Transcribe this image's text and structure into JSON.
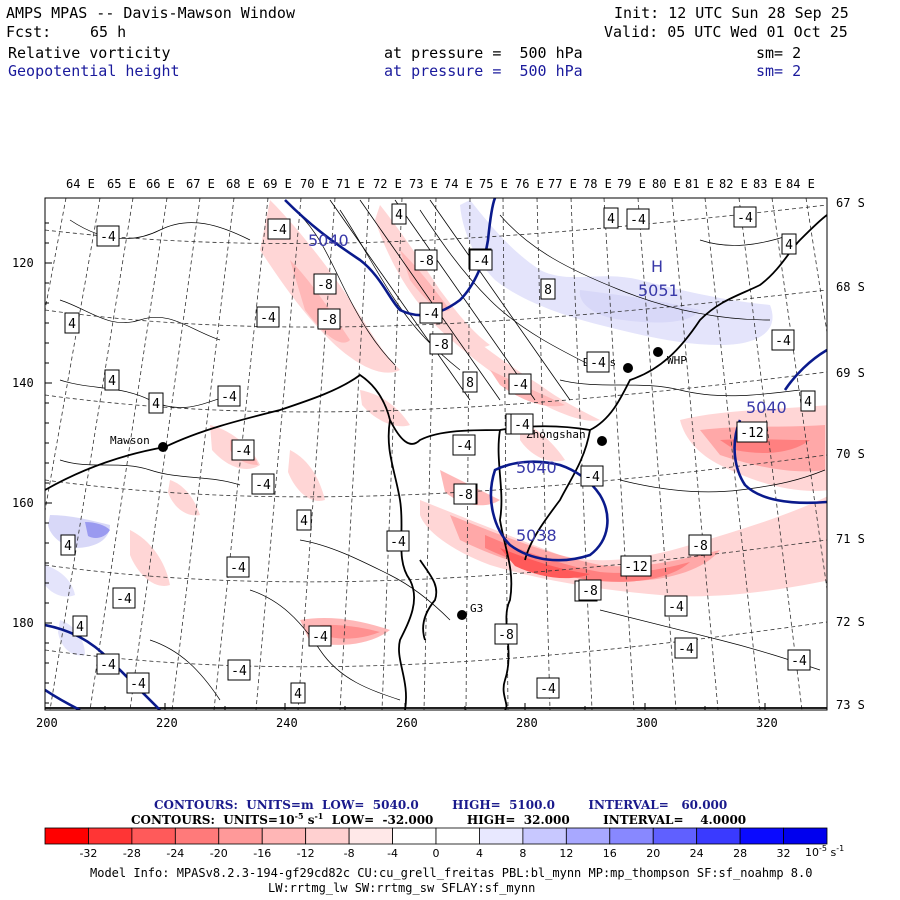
{
  "header": {
    "title": "AMPS MPAS -- Davis-Mawson Window",
    "init": "Init: 12 UTC Sun 28 Sep 25",
    "fcst_label": "Fcst:",
    "fcst_value": "65 h",
    "valid": "Valid: 05 UTC Wed 01 Oct 25",
    "field1_name": "Relative vorticity",
    "field1_level": "at pressure =  500 hPa",
    "field1_sm": "sm= 2",
    "field2_name": "Geopotential height",
    "field2_level": "at pressure =  500 hPa",
    "field2_sm": "sm= 2"
  },
  "colors": {
    "height_contour": "#0a1a8c",
    "coast": "#000000",
    "grid": "#333333"
  },
  "map": {
    "lon_labels": [
      "64 E",
      "65 E",
      "66 E",
      "67 E",
      "68 E",
      "69 E",
      "70 E",
      "71 E",
      "72 E",
      "73 E",
      "74 E",
      "75 E",
      "76 E",
      "77 E",
      "78 E",
      "79 E",
      "80 E",
      "81 E",
      "82 E",
      "83 E",
      "84 E"
    ],
    "lat_labels": [
      "67 S",
      "68 S",
      "69 S",
      "70 S",
      "71 S",
      "72 S",
      "73 S"
    ],
    "x_ticks": [
      "200",
      "220",
      "240",
      "260",
      "280",
      "300",
      "320"
    ],
    "y_ticks": [
      "120",
      "140",
      "160",
      "180"
    ],
    "stations": [
      {
        "name": "Mawson"
      },
      {
        "name": "Davis"
      },
      {
        "name": "WHP"
      },
      {
        "name": "Zhongshan"
      },
      {
        "name": "G3"
      }
    ],
    "height_labels": [
      "5040",
      "5051",
      "5040",
      "5040",
      "5038"
    ],
    "high_marker": "H",
    "vort_labels": [
      "-4",
      "4",
      "-4",
      "-8",
      "-8",
      "-8",
      "-4",
      "4",
      "-8",
      "-4",
      "-4",
      "8",
      "-8",
      "8",
      "-4",
      "4",
      "4",
      "-4",
      "-4",
      "-4",
      "4",
      "4",
      "4",
      "-4",
      "-4",
      "-4",
      "-8",
      "-4",
      "-4",
      "-4",
      "-4",
      "-8",
      "-4",
      "-4",
      "-4",
      "4",
      "-4",
      "-8",
      "-4",
      "-12",
      "-8",
      "-12",
      "-8",
      "-4",
      "-4",
      "4",
      "-4",
      "-4",
      "4",
      "-4",
      "4",
      "-4",
      "4",
      "-8",
      "-4"
    ]
  },
  "legend": {
    "line1": "CONTOURS:  UNITS=m  LOW=  5040.0        HIGH=  5100.0        INTERVAL=   60.000",
    "line2_a": "CONTOURS:  UNITS=10",
    "line2_exp": "-5",
    "line2_b": " s",
    "line2_exp2": "-1",
    "line2_c": "  LOW=  -32.000        HIGH=  32.000        INTERVAL=    4.0000",
    "colorbar_labels": [
      "-32",
      "-28",
      "-24",
      "-20",
      "-16",
      "-12",
      "-8",
      "-4",
      "0",
      "4",
      "8",
      "12",
      "16",
      "20",
      "24",
      "28",
      "32"
    ],
    "colorbar_colors": [
      "#ff0000",
      "#ff3535",
      "#ff5a5a",
      "#ff7a7a",
      "#ff9999",
      "#ffb6b6",
      "#ffd0d0",
      "#ffe8e8",
      "#ffffff",
      "#ffffff",
      "#e8e8ff",
      "#c8c8ff",
      "#a8a8ff",
      "#8888ff",
      "#6060ff",
      "#3a3aff",
      "#0a0aff",
      "#0000ee"
    ],
    "units_label": "10",
    "units_exp": "-5",
    "units_tail": " s",
    "units_exp2": "-1"
  },
  "footer": {
    "line1": "Model Info: MPASv8.2.3-194-gf29cd82c CU:cu_grell_freitas PBL:bl_mynn MP:mp_thompson SF:sf_noahmp 8.0",
    "line2": "LW:rrtmg_lw SW:rrtmg_sw SFLAY:sf_mynn"
  }
}
